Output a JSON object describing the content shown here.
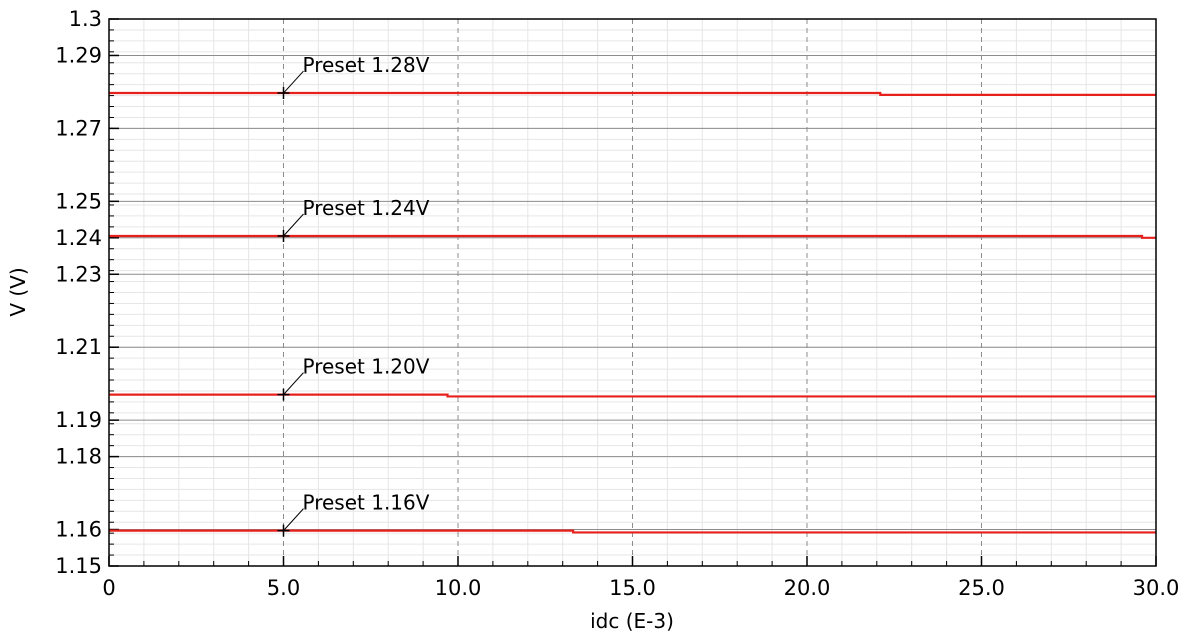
{
  "chart_data": {
    "type": "line",
    "title": "",
    "xlabel": "idc (E-3)",
    "ylabel": "V (V)",
    "xlim": [
      0,
      30
    ],
    "ylim": [
      1.15,
      1.3
    ],
    "x_ticks": [
      0,
      5,
      10,
      15,
      20,
      25,
      30
    ],
    "x_tick_labels": [
      "0",
      "5.0",
      "10.0",
      "15.0",
      "20.0",
      "25.0",
      "30.0"
    ],
    "y_ticks": [
      1.15,
      1.16,
      1.18,
      1.19,
      1.21,
      1.23,
      1.24,
      1.25,
      1.27,
      1.29,
      1.3
    ],
    "y_tick_labels": [
      "1.15",
      "1.16",
      "1.18",
      "1.19",
      "1.21",
      "1.23",
      "1.24",
      "1.25",
      "1.27",
      "1.29",
      "1.3"
    ],
    "grid": true,
    "series_color": "#e8201c",
    "series": [
      {
        "x": [
          0,
          22.1,
          22.1,
          30
        ],
        "y": [
          1.2797,
          1.2797,
          1.2792,
          1.2792
        ]
      },
      {
        "x": [
          0,
          29.6,
          29.6,
          30
        ],
        "y": [
          1.2405,
          1.2405,
          1.24,
          1.24
        ]
      },
      {
        "x": [
          0,
          9.7,
          9.7,
          30
        ],
        "y": [
          1.197,
          1.197,
          1.1965,
          1.1965
        ]
      },
      {
        "x": [
          0,
          13.3,
          13.3,
          30
        ],
        "y": [
          1.1597,
          1.1597,
          1.1592,
          1.1592
        ]
      }
    ],
    "annotations": [
      {
        "text": "Preset 1.28V",
        "x": 5,
        "y": 1.2797
      },
      {
        "text": "Preset 1.24V",
        "x": 5,
        "y": 1.2405
      },
      {
        "text": "Preset 1.20V",
        "x": 5,
        "y": 1.197
      },
      {
        "text": "Preset 1.16V",
        "x": 5,
        "y": 1.1597
      }
    ]
  }
}
